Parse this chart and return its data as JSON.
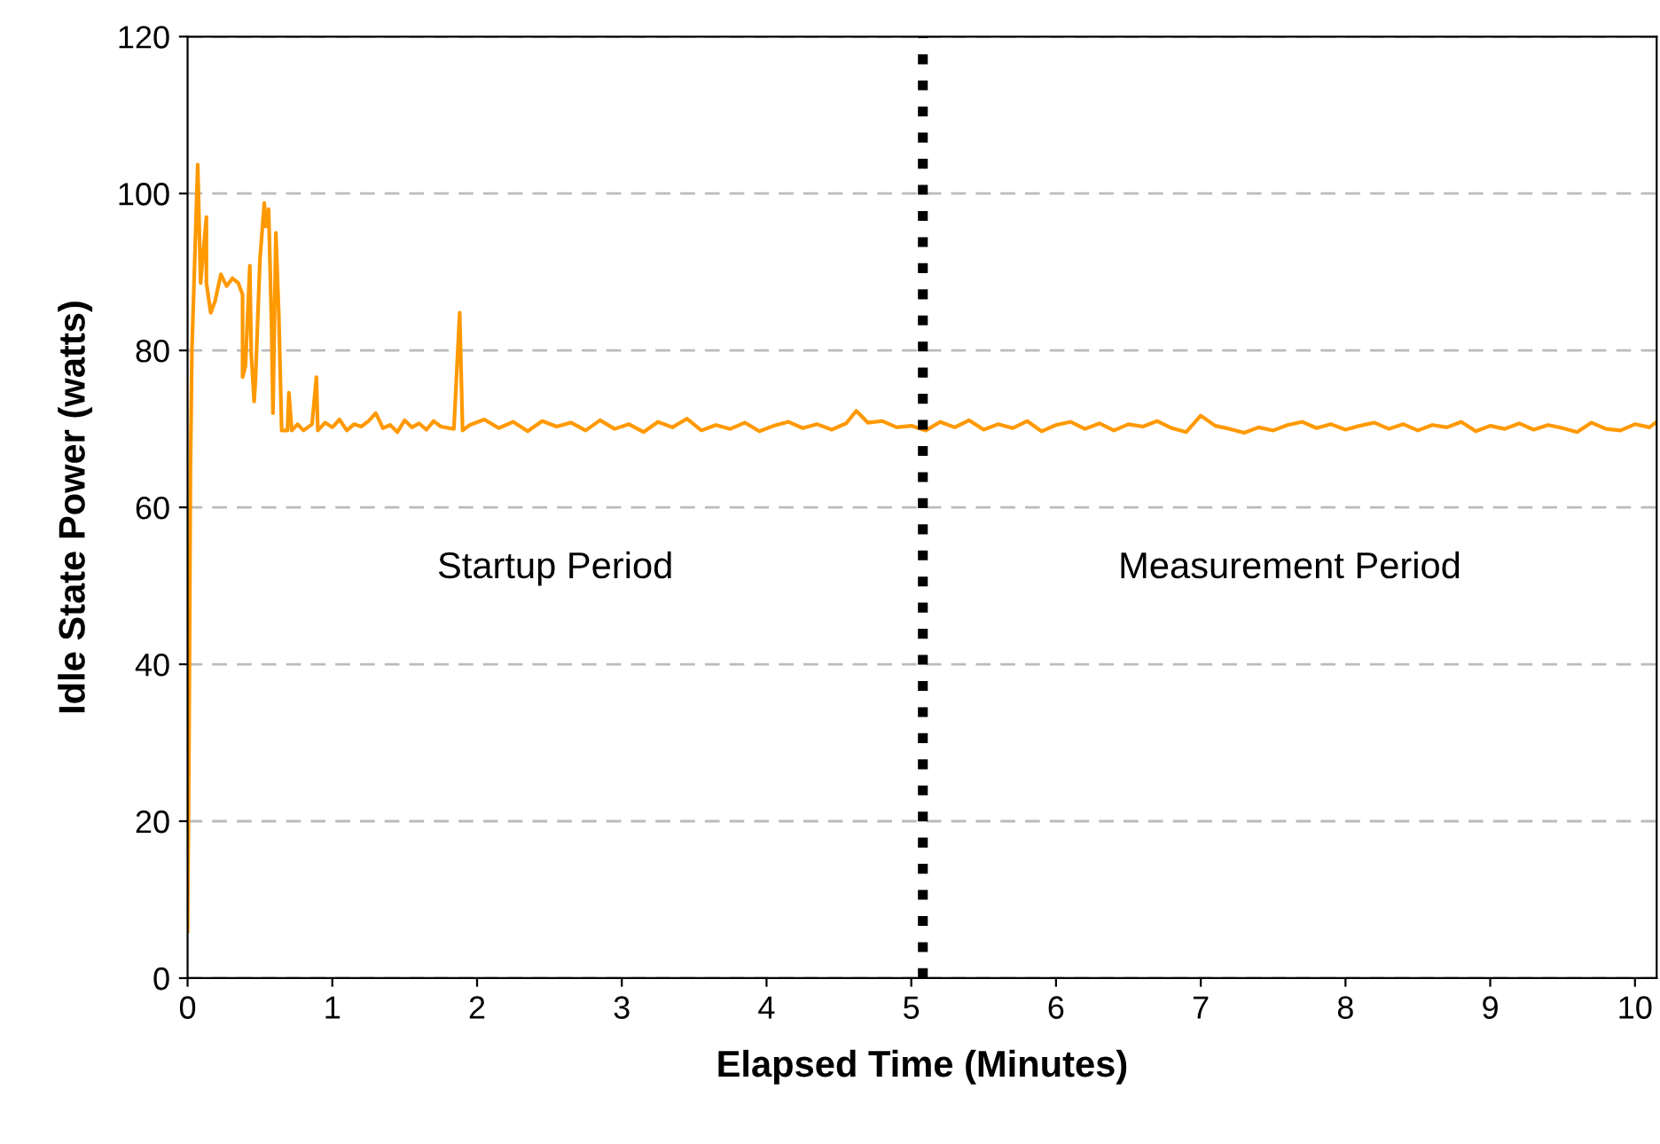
{
  "chart_data": {
    "type": "line",
    "xlabel": "Elapsed Time (Minutes)",
    "ylabel": "Idle State Power (watts)",
    "series": [
      {
        "color": "#ff9900",
        "x": [
          0,
          0.01,
          0.02,
          0.03,
          0.07,
          0.09,
          0.13,
          0.13,
          0.16,
          0.19,
          0.23,
          0.27,
          0.31,
          0.35,
          0.38,
          0.38,
          0.4,
          0.43,
          0.44,
          0.46,
          0.47,
          0.5,
          0.53,
          0.54,
          0.56,
          0.58,
          0.59,
          0.61,
          0.63,
          0.65,
          0.69,
          0.7,
          0.72,
          0.76,
          0.8,
          0.86,
          0.89,
          0.9,
          0.95,
          1.0,
          1.05,
          1.1,
          1.15,
          1.2,
          1.25,
          1.3,
          1.35,
          1.4,
          1.45,
          1.5,
          1.55,
          1.6,
          1.65,
          1.7,
          1.75,
          1.84,
          1.88,
          1.9,
          1.95,
          2.05,
          2.15,
          2.25,
          2.35,
          2.45,
          2.55,
          2.65,
          2.75,
          2.85,
          2.95,
          3.05,
          3.15,
          3.25,
          3.35,
          3.45,
          3.55,
          3.65,
          3.75,
          3.85,
          3.95,
          4.05,
          4.15,
          4.25,
          4.35,
          4.45,
          4.55,
          4.62,
          4.7,
          4.8,
          4.9,
          5.0,
          5.1,
          5.2,
          5.3,
          5.4,
          5.5,
          5.6,
          5.7,
          5.8,
          5.9,
          6.0,
          6.1,
          6.2,
          6.3,
          6.4,
          6.5,
          6.6,
          6.7,
          6.8,
          6.9,
          7.0,
          7.1,
          7.2,
          7.3,
          7.4,
          7.5,
          7.6,
          7.7,
          7.8,
          7.9,
          8.0,
          8.1,
          8.2,
          8.3,
          8.4,
          8.5,
          8.6,
          8.7,
          8.8,
          8.9,
          9.0,
          9.1,
          9.2,
          9.3,
          9.4,
          9.5,
          9.6,
          9.7,
          9.8,
          9.9,
          10.0,
          10.1,
          10.15
        ],
        "values": [
          6,
          30,
          65,
          80,
          103.7,
          88.6,
          97,
          88.6,
          84.8,
          86.3,
          89.7,
          88.2,
          89.2,
          88.6,
          87.1,
          76.6,
          78,
          90.8,
          79.5,
          73.5,
          76.6,
          91.6,
          98.8,
          95.8,
          98,
          83.4,
          72,
          95,
          84.8,
          69.8,
          69.8,
          74.6,
          69.8,
          70.6,
          69.8,
          70.6,
          76.6,
          69.8,
          70.8,
          70.2,
          71.2,
          69.8,
          70.6,
          70.3,
          71.0,
          72.0,
          70.1,
          70.5,
          69.6,
          71.1,
          70.2,
          70.7,
          69.9,
          71.0,
          70.3,
          70.0,
          84.8,
          69.8,
          70.5,
          71.2,
          70.1,
          70.9,
          69.7,
          71.0,
          70.3,
          70.8,
          69.8,
          71.1,
          70.0,
          70.6,
          69.6,
          70.9,
          70.2,
          71.3,
          69.8,
          70.5,
          70.0,
          70.8,
          69.7,
          70.4,
          70.9,
          70.1,
          70.6,
          69.9,
          70.7,
          72.3,
          70.8,
          71.0,
          70.2,
          70.4,
          69.8,
          70.9,
          70.2,
          71.1,
          69.9,
          70.6,
          70.1,
          71.0,
          69.7,
          70.5,
          70.9,
          70.0,
          70.7,
          69.8,
          70.6,
          70.3,
          71.0,
          70.1,
          69.6,
          71.7,
          70.4,
          70.0,
          69.5,
          70.2,
          69.8,
          70.5,
          70.9,
          70.1,
          70.6,
          69.9,
          70.4,
          70.8,
          70.0,
          70.6,
          69.8,
          70.5,
          70.2,
          70.9,
          69.7,
          70.4,
          70.0,
          70.7,
          69.9,
          70.5,
          70.1,
          69.6,
          70.8,
          70.0,
          69.8,
          70.6,
          70.2,
          70.9
        ]
      }
    ],
    "xlim": [
      0,
      10.15
    ],
    "ylim": [
      0,
      120
    ],
    "xticks": [
      0,
      1,
      2,
      3,
      4,
      5,
      6,
      7,
      8,
      9,
      10
    ],
    "yticks": [
      0,
      20,
      40,
      60,
      80,
      100,
      120
    ],
    "grid": "y",
    "ref_lines": [
      {
        "axis": "x",
        "value": 5.08,
        "color": "#000000",
        "line_style": "dotted"
      }
    ],
    "annotations": [
      "Startup Period",
      "Measurement Period"
    ]
  }
}
